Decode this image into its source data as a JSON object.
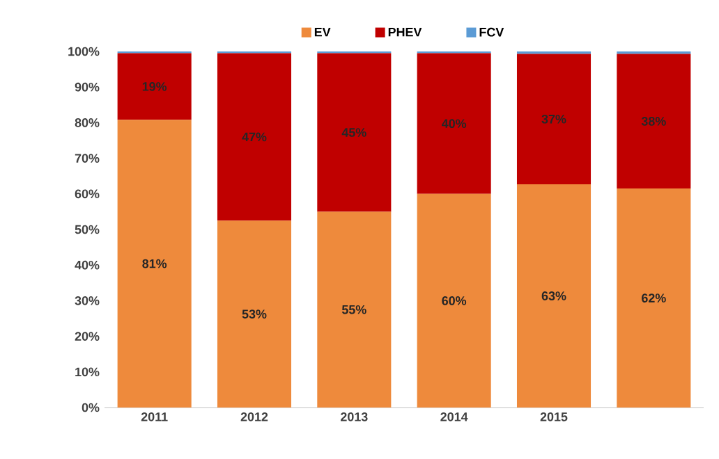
{
  "chart_data": {
    "type": "bar",
    "stacked": true,
    "categories": [
      "2011",
      "2012",
      "2013",
      "2014",
      "2015",
      null
    ],
    "series": [
      {
        "name": "EV",
        "color": "#ee8a3c",
        "values": [
          80.8,
          52.5,
          55.0,
          60.0,
          62.7,
          61.5
        ],
        "value_labels": [
          "81%",
          "53%",
          "55%",
          "60%",
          "63%",
          "62%"
        ]
      },
      {
        "name": "PHEV",
        "color": "#c00000",
        "values": [
          18.7,
          47.0,
          44.5,
          39.5,
          36.6,
          37.8
        ],
        "value_labels": [
          "19%",
          "47%",
          "45%",
          "40%",
          "37%",
          "38%"
        ]
      },
      {
        "name": "FCV",
        "color": "#5b9bd5",
        "values": [
          0.5,
          0.5,
          0.5,
          0.5,
          0.7,
          0.7
        ]
      }
    ],
    "ylim": [
      0,
      100
    ],
    "yticks": [
      {
        "value": 0,
        "label": "0%"
      },
      {
        "value": 10,
        "label": "10%"
      },
      {
        "value": 20,
        "label": "20%"
      },
      {
        "value": 30,
        "label": "30%"
      },
      {
        "value": 40,
        "label": "40%"
      },
      {
        "value": 50,
        "label": "50%"
      },
      {
        "value": 60,
        "label": "60%"
      },
      {
        "value": 70,
        "label": "70%"
      },
      {
        "value": 80,
        "label": "80%"
      },
      {
        "value": 90,
        "label": "90%"
      },
      {
        "value": 100,
        "label": "100%"
      }
    ],
    "legend": "top"
  }
}
